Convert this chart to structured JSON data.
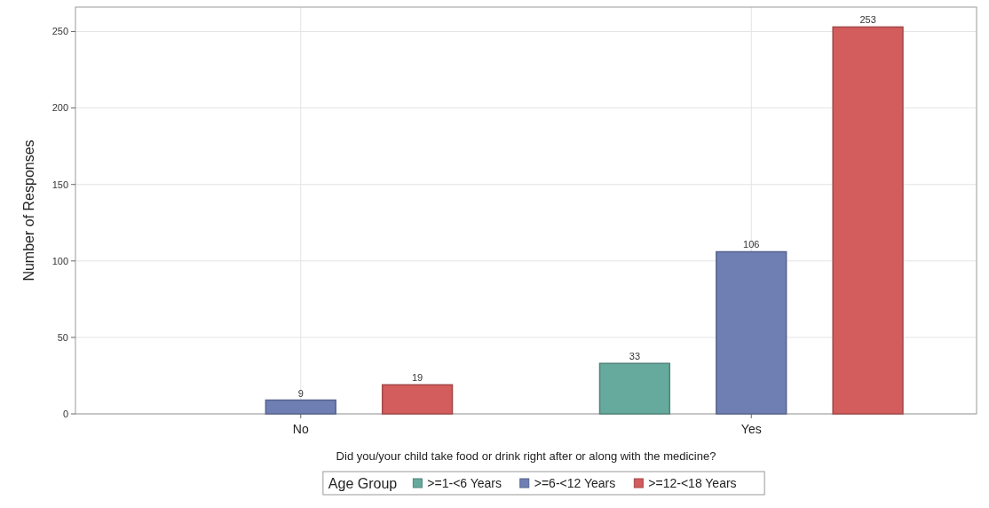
{
  "chart_data": {
    "type": "bar",
    "xlabel": "Did you/your child take food or drink right after or along with the medicine?",
    "ylabel": "Number of Responses",
    "legend_title": "Age Group",
    "categories": [
      "No",
      "Yes"
    ],
    "series": [
      {
        "name": ">=1-<6 Years",
        "color": "#66a99d",
        "values": [
          null,
          33
        ]
      },
      {
        "name": ">=6-<12 Years",
        "color": "#6f7fb4",
        "values": [
          9,
          106
        ]
      },
      {
        "name": ">=12-<18 Years",
        "color": "#d35c5c",
        "values": [
          19,
          253
        ]
      }
    ],
    "ylim": [
      0,
      266
    ],
    "yticks": [
      0,
      50,
      100,
      150,
      200,
      250
    ],
    "grid": true,
    "legend": "bottom",
    "data_labels": true
  }
}
